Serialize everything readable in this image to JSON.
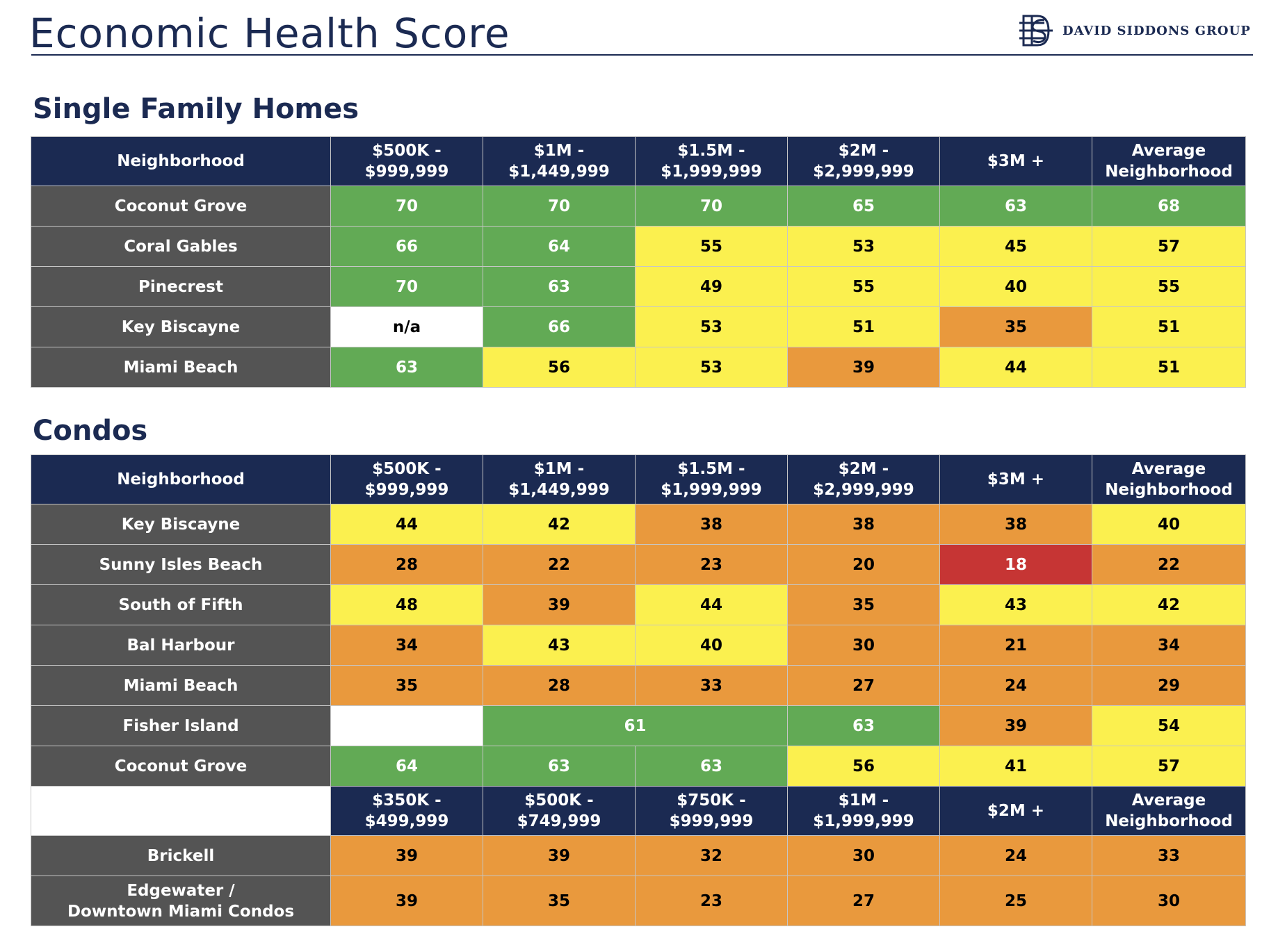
{
  "header": {
    "title": "Economic Health Score",
    "brand": "DAVID SIDDONS GROUP",
    "brand_logo": "ds-monogram-icon"
  },
  "colors": {
    "navy": "#1b2a52",
    "row_label": "#545454",
    "green": "#62aa55",
    "yellow": "#fbf04f",
    "orange": "#e9993d",
    "red": "#c63534"
  },
  "single_family": {
    "section_title": "Single Family Homes",
    "columns": [
      {
        "line1": "Neighborhood",
        "line2": ""
      },
      {
        "line1": "$500K -",
        "line2": "$999,999"
      },
      {
        "line1": "$1M -",
        "line2": "$1,449,999"
      },
      {
        "line1": "$1.5M -",
        "line2": "$1,999,999"
      },
      {
        "line1": "$2M -",
        "line2": "$2,999,999"
      },
      {
        "line1": "$3M +",
        "line2": ""
      },
      {
        "line1": "Average",
        "line2": "Neighborhood"
      }
    ],
    "rows": [
      {
        "name": "Coconut Grove",
        "values": [
          "70",
          "70",
          "70",
          "65",
          "63",
          "68"
        ],
        "colors": [
          "g",
          "g",
          "g",
          "g",
          "g",
          "g"
        ]
      },
      {
        "name": "Coral Gables",
        "values": [
          "66",
          "64",
          "55",
          "53",
          "45",
          "57"
        ],
        "colors": [
          "g",
          "g",
          "y",
          "y",
          "y",
          "y"
        ]
      },
      {
        "name": "Pinecrest",
        "values": [
          "70",
          "63",
          "49",
          "55",
          "40",
          "55"
        ],
        "colors": [
          "g",
          "g",
          "y",
          "y",
          "y",
          "y"
        ]
      },
      {
        "name": "Key Biscayne",
        "values": [
          "n/a",
          "66",
          "53",
          "51",
          "35",
          "51"
        ],
        "colors": [
          "w",
          "g",
          "y",
          "y",
          "o",
          "y"
        ]
      },
      {
        "name": "Miami Beach",
        "values": [
          "63",
          "56",
          "53",
          "39",
          "44",
          "51"
        ],
        "colors": [
          "g",
          "y",
          "y",
          "o",
          "y",
          "y"
        ]
      }
    ]
  },
  "condos": {
    "section_title": "Condos",
    "columns": [
      {
        "line1": "Neighborhood",
        "line2": ""
      },
      {
        "line1": "$500K -",
        "line2": "$999,999"
      },
      {
        "line1": "$1M -",
        "line2": "$1,449,999"
      },
      {
        "line1": "$1.5M -",
        "line2": "$1,999,999"
      },
      {
        "line1": "$2M -",
        "line2": "$2,999,999"
      },
      {
        "line1": "$3M +",
        "line2": ""
      },
      {
        "line1": "Average",
        "line2": "Neighborhood"
      }
    ],
    "rows": [
      {
        "name": "Key Biscayne",
        "values": [
          "44",
          "42",
          "38",
          "38",
          "38",
          "40"
        ],
        "colors": [
          "y",
          "y",
          "o",
          "o",
          "o",
          "y"
        ]
      },
      {
        "name": "Sunny Isles Beach",
        "values": [
          "28",
          "22",
          "23",
          "20",
          "18",
          "22"
        ],
        "colors": [
          "o",
          "o",
          "o",
          "o",
          "r",
          "o"
        ]
      },
      {
        "name": "South of Fifth",
        "values": [
          "48",
          "39",
          "44",
          "35",
          "43",
          "42"
        ],
        "colors": [
          "y",
          "o",
          "y",
          "o",
          "y",
          "y"
        ]
      },
      {
        "name": "Bal Harbour",
        "values": [
          "34",
          "43",
          "40",
          "30",
          "21",
          "34"
        ],
        "colors": [
          "o",
          "y",
          "y",
          "o",
          "o",
          "o"
        ]
      },
      {
        "name": "Miami Beach",
        "values": [
          "35",
          "28",
          "33",
          "27",
          "24",
          "29"
        ],
        "colors": [
          "o",
          "o",
          "o",
          "o",
          "o",
          "o"
        ]
      },
      {
        "name": "Fisher Island",
        "blank": "",
        "merged_value": "61",
        "values": [
          "63",
          "39",
          "54"
        ],
        "colors": [
          "g",
          "o",
          "y"
        ]
      },
      {
        "name": "Coconut Grove",
        "values": [
          "64",
          "63",
          "63",
          "56",
          "41",
          "57"
        ],
        "colors": [
          "g",
          "g",
          "g",
          "y",
          "y",
          "y"
        ]
      }
    ],
    "columns_b": [
      {
        "line1": "$350K -",
        "line2": "$499,999"
      },
      {
        "line1": "$500K -",
        "line2": "$749,999"
      },
      {
        "line1": "$750K -",
        "line2": "$999,999"
      },
      {
        "line1": "$1M -",
        "line2": "$1,999,999"
      },
      {
        "line1": "$2M +",
        "line2": ""
      },
      {
        "line1": "Average",
        "line2": "Neighborhood"
      }
    ],
    "rows_b": [
      {
        "name": "Brickell",
        "name_line2": "",
        "values": [
          "39",
          "39",
          "32",
          "30",
          "24",
          "33"
        ],
        "colors": [
          "o",
          "o",
          "o",
          "o",
          "o",
          "o"
        ]
      },
      {
        "name": "Edgewater /",
        "name_line2": "Downtown Miami Condos",
        "values": [
          "39",
          "35",
          "23",
          "27",
          "25",
          "30"
        ],
        "colors": [
          "o",
          "o",
          "o",
          "o",
          "o",
          "o"
        ]
      }
    ]
  }
}
